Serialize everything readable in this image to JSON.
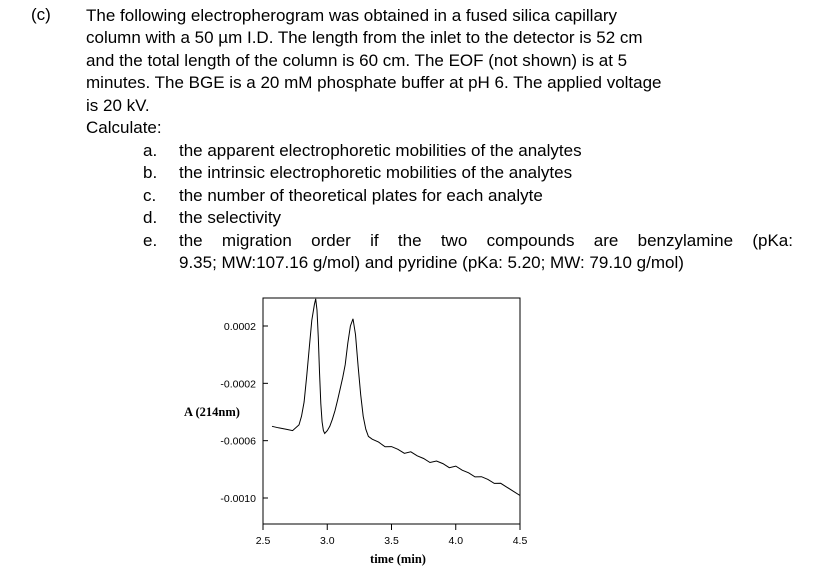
{
  "problem": {
    "label": "(c)",
    "lines": [
      "The following electropherogram was obtained in a fused silica capillary",
      "column with a 50 µm I.D.  The length from the inlet to the detector is 52 cm",
      "and the total length of the column is 60 cm.  The EOF (not shown) is at 5",
      "minutes.  The BGE is a 20 mM phosphate buffer at pH 6.  The applied voltage",
      "is 20 kV."
    ],
    "calculate": "Calculate:",
    "items": [
      {
        "letter": "a.",
        "lines": [
          "the apparent electrophoretic mobilities of the analytes"
        ]
      },
      {
        "letter": "b.",
        "lines": [
          "the intrinsic electrophoretic mobilities of the analytes"
        ]
      },
      {
        "letter": "c.",
        "lines": [
          "the number of theoretical plates for each analyte"
        ]
      },
      {
        "letter": "d.",
        "lines": [
          "the selectivity"
        ]
      },
      {
        "letter": "e.",
        "lines": [
          "the migration order if the two compounds are benzylamine (pKa:",
          "9.35; MW:107.16 g/mol) and pyridine (pKa: 5.20; MW: 79.10 g/mol)"
        ]
      }
    ]
  },
  "chart_data": {
    "type": "line",
    "xlabel": "time (min)",
    "ylabel": "A (214nm)",
    "xlim": [
      2.5,
      4.5
    ],
    "ylim": [
      -0.0012,
      0.0004
    ],
    "x_ticks": [
      2.5,
      3.0,
      3.5,
      4.0,
      4.5
    ],
    "x_tick_labels": [
      "2.5",
      "3.0",
      "3.5",
      "4.0",
      "4.5"
    ],
    "y_ticks": [
      0.0002,
      -0.0002,
      -0.0006,
      -0.001
    ],
    "y_tick_labels": [
      "0.0002",
      "-0.0002",
      "-0.0006",
      "-0.0010"
    ],
    "grid": false,
    "series": [
      {
        "x": [
          2.57,
          2.62,
          2.68,
          2.73,
          2.78,
          2.8,
          2.82,
          2.84,
          2.86,
          2.88,
          2.9,
          2.91,
          2.92,
          2.93,
          2.94,
          2.95,
          2.96,
          2.97,
          2.98,
          3.0,
          3.02,
          3.04,
          3.06,
          3.08,
          3.1,
          3.12,
          3.14,
          3.16,
          3.18,
          3.2,
          3.22,
          3.24,
          3.26,
          3.28,
          3.3,
          3.32,
          3.35,
          3.4,
          3.45,
          3.5,
          3.55,
          3.6,
          3.65,
          3.7,
          3.75,
          3.8,
          3.85,
          3.9,
          3.95,
          4.0,
          4.05,
          4.1,
          4.15,
          4.2,
          4.25,
          4.3,
          4.35,
          4.4,
          4.45,
          4.5
        ],
        "y": [
          -0.0005,
          -0.00051,
          -0.00052,
          -0.00053,
          -0.00049,
          -0.00043,
          -0.00033,
          -0.00015,
          5e-05,
          0.00024,
          0.00035,
          0.00039,
          0.00031,
          0.00012,
          -0.00012,
          -0.00034,
          -0.00047,
          -0.00053,
          -0.00055,
          -0.00053,
          -0.0005,
          -0.00045,
          -0.00039,
          -0.00032,
          -0.00024,
          -0.00016,
          -7e-05,
          8e-05,
          0.0002,
          0.00025,
          0.00014,
          -8e-05,
          -0.00028,
          -0.00043,
          -0.00052,
          -0.00057,
          -0.00059,
          -0.00061,
          -0.00063,
          -0.00065,
          -0.00066,
          -0.00068,
          -0.00069,
          -0.00071,
          -0.00072,
          -0.00074,
          -0.00075,
          -0.00076,
          -0.00078,
          -0.00079,
          -0.00081,
          -0.00082,
          -0.00084,
          -0.00086,
          -0.00087,
          -0.00089,
          -0.00091,
          -0.00093,
          -0.00095,
          -0.00097
        ]
      }
    ]
  }
}
